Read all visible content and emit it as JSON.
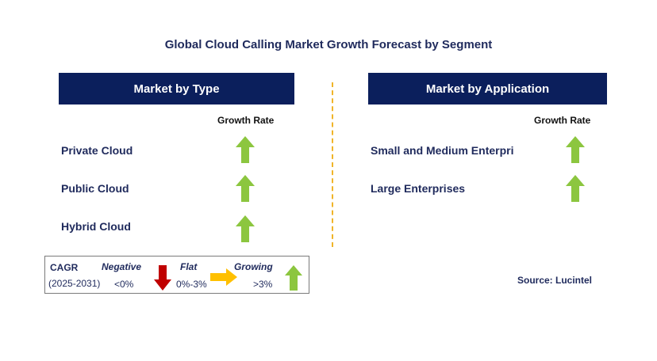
{
  "title": "Global Cloud Calling Market Growth Forecast by Segment",
  "left_panel": {
    "header": "Market by Type",
    "column_header": "Growth Rate",
    "rows": [
      {
        "label": "Private Cloud",
        "trend": "growing"
      },
      {
        "label": "Public Cloud",
        "trend": "growing"
      },
      {
        "label": "Hybrid Cloud",
        "trend": "growing"
      }
    ]
  },
  "right_panel": {
    "header": "Market by Application",
    "column_header": "Growth Rate",
    "rows": [
      {
        "label": "Small and Medium Enterpri",
        "trend": "growing"
      },
      {
        "label": "Large Enterprises",
        "trend": "growing"
      }
    ]
  },
  "legend": {
    "cagr_label": "CAGR",
    "period": "(2025-2031)",
    "negative_label": "Negative",
    "negative_range": "<0%",
    "flat_label": "Flat",
    "flat_range": "0%-3%",
    "growing_label": "Growing",
    "growing_range": ">3%"
  },
  "source": "Source: Lucintel",
  "colors": {
    "header_bg": "#0b1f5c",
    "up_arrow": "#8cc63f",
    "down_arrow": "#c00000",
    "flat_arrow": "#ffc000",
    "divider": "#f0b429"
  }
}
